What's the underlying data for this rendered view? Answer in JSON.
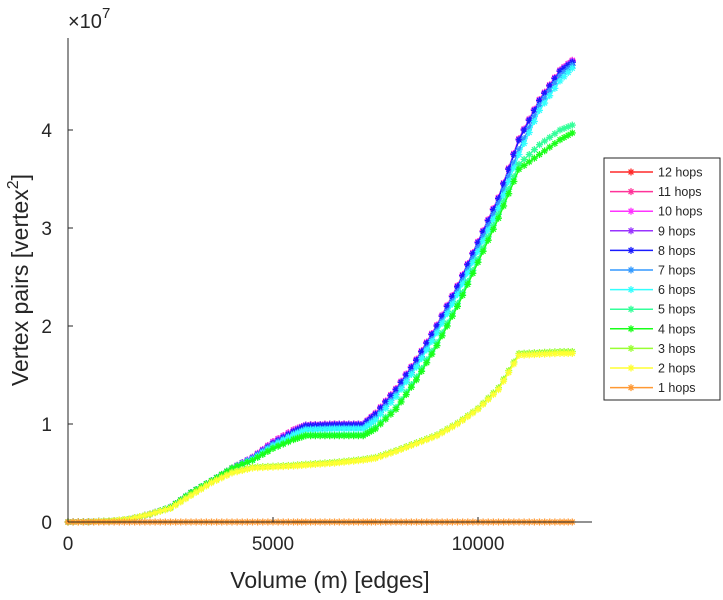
{
  "chart_data": {
    "type": "line",
    "title": "",
    "xlabel": "Volume (m) [edges]",
    "ylabel": "Vertex pairs [vertex",
    "ylabel_sup": "2",
    "ylabel_end": "]",
    "y_multiplier_label": "×10",
    "y_multiplier_exp": "7",
    "xlim": [
      0,
      12800
    ],
    "ylim": [
      0,
      4.95
    ],
    "xticks": [
      0,
      5000,
      10000
    ],
    "xtick_labels": [
      "0",
      "5000",
      "10000"
    ],
    "yticks": [
      0,
      1,
      2,
      3,
      4
    ],
    "ytick_labels": [
      "0",
      "1",
      "2",
      "3",
      "4"
    ],
    "legend_placement": "right-outside",
    "x": [
      0,
      500,
      1000,
      1500,
      2000,
      2500,
      3000,
      3500,
      4000,
      4500,
      5000,
      5500,
      5800,
      6500,
      7200,
      7500,
      8000,
      8500,
      9000,
      9500,
      10000,
      10500,
      11000,
      11500,
      12000,
      12300
    ],
    "series": [
      {
        "name": "12 hops",
        "color": "#ff2a2a",
        "values": [
          0,
          0.002,
          0.01,
          0.03,
          0.08,
          0.15,
          0.3,
          0.42,
          0.55,
          0.66,
          0.82,
          0.94,
          0.99,
          1.0,
          1.0,
          1.11,
          1.36,
          1.66,
          2.01,
          2.41,
          2.86,
          3.31,
          3.91,
          4.31,
          4.61,
          4.71
        ]
      },
      {
        "name": "11 hops",
        "color": "#ff3399",
        "values": [
          0,
          0.002,
          0.01,
          0.03,
          0.08,
          0.15,
          0.3,
          0.42,
          0.55,
          0.66,
          0.82,
          0.94,
          0.99,
          1.0,
          1.0,
          1.11,
          1.36,
          1.66,
          2.01,
          2.41,
          2.86,
          3.31,
          3.91,
          4.31,
          4.61,
          4.71
        ]
      },
      {
        "name": "10 hops",
        "color": "#ff33ff",
        "values": [
          0,
          0.002,
          0.01,
          0.03,
          0.08,
          0.15,
          0.3,
          0.42,
          0.55,
          0.66,
          0.82,
          0.94,
          0.99,
          1.0,
          1.0,
          1.11,
          1.36,
          1.66,
          2.01,
          2.41,
          2.86,
          3.31,
          3.91,
          4.31,
          4.61,
          4.71
        ]
      },
      {
        "name": "9 hops",
        "color": "#9933ff",
        "values": [
          0,
          0.002,
          0.01,
          0.03,
          0.08,
          0.15,
          0.3,
          0.42,
          0.55,
          0.66,
          0.81,
          0.93,
          0.99,
          1.0,
          1.0,
          1.1,
          1.35,
          1.65,
          2.0,
          2.4,
          2.85,
          3.3,
          3.9,
          4.3,
          4.6,
          4.7
        ]
      },
      {
        "name": "8 hops",
        "color": "#1a1aff",
        "values": [
          0,
          0.002,
          0.01,
          0.03,
          0.08,
          0.15,
          0.3,
          0.42,
          0.55,
          0.65,
          0.8,
          0.92,
          0.98,
          0.99,
          0.99,
          1.1,
          1.35,
          1.65,
          2.0,
          2.4,
          2.85,
          3.3,
          3.9,
          4.3,
          4.6,
          4.69
        ]
      },
      {
        "name": "7 hops",
        "color": "#3399ff",
        "values": [
          0,
          0.002,
          0.01,
          0.03,
          0.08,
          0.15,
          0.3,
          0.42,
          0.55,
          0.65,
          0.79,
          0.9,
          0.95,
          0.96,
          0.96,
          1.06,
          1.3,
          1.6,
          1.95,
          2.35,
          2.8,
          3.25,
          3.8,
          4.25,
          4.55,
          4.66
        ]
      },
      {
        "name": "6 hops",
        "color": "#33ffff",
        "values": [
          0,
          0.002,
          0.01,
          0.03,
          0.08,
          0.15,
          0.3,
          0.42,
          0.55,
          0.64,
          0.78,
          0.89,
          0.94,
          0.95,
          0.95,
          1.04,
          1.28,
          1.58,
          1.93,
          2.32,
          2.76,
          3.2,
          3.75,
          4.2,
          4.5,
          4.63
        ]
      },
      {
        "name": "5 hops",
        "color": "#33ff99",
        "values": [
          0,
          0.002,
          0.01,
          0.03,
          0.08,
          0.15,
          0.3,
          0.42,
          0.55,
          0.63,
          0.76,
          0.85,
          0.89,
          0.89,
          0.89,
          0.97,
          1.17,
          1.48,
          1.83,
          2.23,
          2.68,
          3.14,
          3.65,
          3.85,
          4.0,
          4.05
        ]
      },
      {
        "name": "4 hops",
        "color": "#1aff1a",
        "values": [
          0,
          0.002,
          0.01,
          0.03,
          0.08,
          0.15,
          0.3,
          0.42,
          0.55,
          0.63,
          0.75,
          0.84,
          0.88,
          0.88,
          0.88,
          0.95,
          1.15,
          1.45,
          1.8,
          2.2,
          2.65,
          3.1,
          3.6,
          3.75,
          3.9,
          3.97
        ]
      },
      {
        "name": "3 hops",
        "color": "#99ff33",
        "values": [
          0,
          0.002,
          0.01,
          0.03,
          0.08,
          0.14,
          0.28,
          0.41,
          0.51,
          0.56,
          0.57,
          0.58,
          0.59,
          0.61,
          0.64,
          0.66,
          0.73,
          0.81,
          0.89,
          1.01,
          1.16,
          1.37,
          1.72,
          1.73,
          1.74,
          1.74
        ]
      },
      {
        "name": "2 hops",
        "color": "#ffff33",
        "values": [
          0,
          0.002,
          0.01,
          0.03,
          0.08,
          0.14,
          0.27,
          0.4,
          0.5,
          0.55,
          0.56,
          0.57,
          0.58,
          0.6,
          0.63,
          0.65,
          0.72,
          0.8,
          0.88,
          1.0,
          1.15,
          1.35,
          1.7,
          1.71,
          1.72,
          1.72
        ]
      },
      {
        "name": "1 hops",
        "color": "#ff9933",
        "values": [
          0,
          0,
          0,
          0,
          0,
          0,
          0,
          0,
          0,
          0,
          0,
          0,
          0,
          0,
          0,
          0,
          0,
          0,
          0,
          0,
          0,
          0,
          0,
          0,
          0,
          0
        ]
      }
    ]
  }
}
